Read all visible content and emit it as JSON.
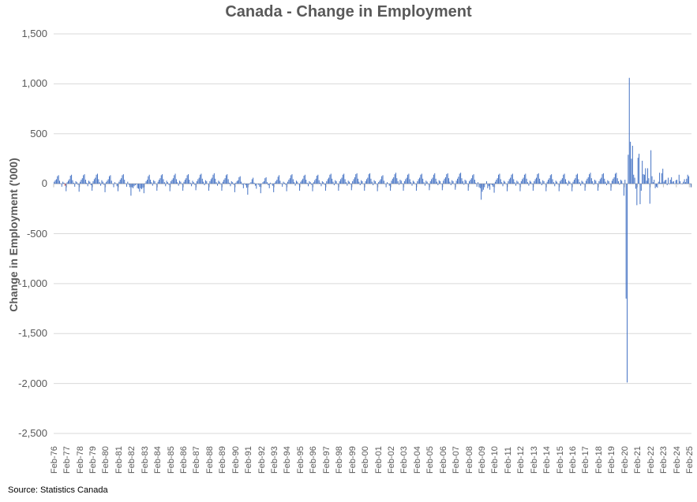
{
  "title": "Canada - Change in Employment",
  "source": "Source: Statistics Canada",
  "colors": {
    "bar": "#4472C4",
    "highlight_bar": "#d0342c",
    "gridline": "#D9D9D9",
    "axis": "#BFBFBF",
    "title_text": "#595959",
    "tick_text": "#595959"
  },
  "chart_data": {
    "type": "bar",
    "title": "Canada - Change in Employment",
    "xlabel": "",
    "ylabel": "Change in Employment ('000)",
    "ylim": [
      -2500,
      1500
    ],
    "ytick_step": 500,
    "yticks": [
      "1,500",
      "1,000",
      "500",
      "0",
      "-500",
      "-1,000",
      "-1,500",
      "-2,000",
      "-2,500"
    ],
    "grid": true,
    "legend": false,
    "x_unit": "monthly",
    "x_start": "Feb-1976",
    "x_end": "Mar-2025",
    "xtick_every_months": 12,
    "xtick_labels": [
      "Feb-76",
      "Feb-77",
      "Feb-78",
      "Feb-79",
      "Feb-80",
      "Feb-81",
      "Feb-82",
      "Feb-83",
      "Feb-84",
      "Feb-85",
      "Feb-86",
      "Feb-87",
      "Feb-88",
      "Feb-89",
      "Feb-90",
      "Feb-91",
      "Feb-92",
      "Feb-93",
      "Feb-94",
      "Feb-95",
      "Feb-96",
      "Feb-97",
      "Feb-98",
      "Feb-99",
      "Feb-00",
      "Feb-01",
      "Feb-02",
      "Feb-03",
      "Feb-04",
      "Feb-05",
      "Feb-06",
      "Feb-07",
      "Feb-08",
      "Feb-09",
      "Feb-10",
      "Feb-11",
      "Feb-12",
      "Feb-13",
      "Feb-14",
      "Feb-15",
      "Feb-16",
      "Feb-17",
      "Feb-18",
      "Feb-19",
      "Feb-20",
      "Feb-21",
      "Feb-22",
      "Feb-23",
      "Feb-24",
      "Feb-25"
    ],
    "highlight": {
      "index": 10,
      "label": "Dec-76",
      "color": "#d0342c"
    },
    "notable_points": [
      {
        "label": "Mar-20",
        "value": -1150
      },
      {
        "label": "Apr-20",
        "value": -1990
      },
      {
        "label": "Jun-20",
        "value": 1060
      },
      {
        "label": "Jan-09",
        "value": -160
      },
      {
        "label": "Jan-21",
        "value": -215
      },
      {
        "label": "Feb-22",
        "value": 335
      }
    ],
    "values": [
      20,
      35,
      45,
      75,
      85,
      30,
      5,
      -30,
      20,
      10,
      -20,
      -75,
      15,
      30,
      45,
      80,
      90,
      35,
      10,
      -30,
      25,
      15,
      -10,
      -80,
      20,
      40,
      55,
      85,
      95,
      40,
      10,
      -25,
      30,
      20,
      -15,
      -70,
      25,
      45,
      60,
      90,
      100,
      45,
      15,
      -20,
      35,
      20,
      -10,
      -85,
      15,
      30,
      45,
      75,
      85,
      30,
      0,
      -35,
      15,
      5,
      -25,
      -75,
      20,
      40,
      55,
      85,
      95,
      40,
      5,
      -30,
      20,
      -10,
      -35,
      -120,
      -35,
      -45,
      -25,
      -15,
      -5,
      -45,
      -50,
      -80,
      -45,
      -55,
      -40,
      -95,
      5,
      25,
      40,
      75,
      90,
      40,
      15,
      -20,
      35,
      25,
      0,
      -70,
      20,
      40,
      55,
      85,
      95,
      45,
      15,
      -25,
      30,
      15,
      -10,
      -75,
      25,
      40,
      55,
      85,
      100,
      45,
      15,
      -20,
      30,
      20,
      -5,
      -70,
      20,
      40,
      55,
      85,
      95,
      40,
      10,
      -25,
      30,
      15,
      -10,
      -65,
      25,
      45,
      60,
      90,
      100,
      50,
      20,
      -15,
      35,
      25,
      0,
      -70,
      25,
      45,
      60,
      90,
      105,
      50,
      15,
      -20,
      30,
      20,
      -5,
      -70,
      20,
      40,
      55,
      85,
      95,
      45,
      10,
      -25,
      25,
      15,
      -10,
      -85,
      10,
      25,
      35,
      65,
      75,
      20,
      -10,
      -45,
      5,
      -15,
      -40,
      -110,
      -10,
      5,
      15,
      45,
      60,
      10,
      -20,
      -50,
      0,
      -10,
      -30,
      -95,
      0,
      15,
      25,
      55,
      65,
      15,
      -15,
      -45,
      10,
      0,
      -20,
      -85,
      10,
      25,
      40,
      70,
      85,
      30,
      5,
      -30,
      20,
      10,
      -10,
      -75,
      20,
      40,
      55,
      85,
      95,
      45,
      15,
      -20,
      30,
      20,
      -5,
      -70,
      20,
      35,
      50,
      80,
      90,
      40,
      10,
      -25,
      25,
      15,
      -10,
      -75,
      15,
      35,
      50,
      80,
      90,
      35,
      10,
      -25,
      25,
      15,
      -10,
      -70,
      25,
      45,
      60,
      90,
      100,
      50,
      20,
      -15,
      35,
      25,
      0,
      -70,
      25,
      45,
      60,
      90,
      100,
      45,
      15,
      -20,
      30,
      20,
      -5,
      -65,
      25,
      45,
      65,
      95,
      105,
      50,
      20,
      -15,
      35,
      25,
      0,
      -70,
      25,
      45,
      60,
      95,
      105,
      50,
      20,
      -15,
      35,
      25,
      0,
      -75,
      15,
      30,
      45,
      75,
      85,
      30,
      0,
      -35,
      15,
      5,
      -20,
      -70,
      30,
      50,
      65,
      95,
      110,
      55,
      25,
      -10,
      40,
      30,
      5,
      -70,
      25,
      45,
      60,
      90,
      100,
      45,
      15,
      -20,
      30,
      20,
      -5,
      -70,
      25,
      45,
      60,
      90,
      100,
      50,
      15,
      -20,
      30,
      20,
      -5,
      -65,
      25,
      45,
      60,
      90,
      105,
      50,
      20,
      -15,
      35,
      25,
      0,
      -65,
      30,
      50,
      65,
      95,
      105,
      55,
      20,
      -15,
      35,
      25,
      0,
      -60,
      30,
      50,
      70,
      100,
      110,
      55,
      25,
      -10,
      40,
      30,
      5,
      -70,
      25,
      40,
      55,
      85,
      95,
      40,
      10,
      -30,
      15,
      -35,
      -45,
      -160,
      -80,
      -60,
      -35,
      0,
      25,
      -45,
      -25,
      -60,
      -5,
      -15,
      -30,
      -90,
      20,
      40,
      55,
      90,
      100,
      45,
      15,
      -25,
      30,
      20,
      -5,
      -75,
      25,
      45,
      60,
      90,
      100,
      45,
      15,
      -20,
      30,
      20,
      -5,
      -75,
      25,
      45,
      60,
      90,
      100,
      50,
      15,
      -20,
      30,
      20,
      -5,
      -70,
      25,
      45,
      60,
      95,
      105,
      50,
      20,
      -15,
      35,
      25,
      0,
      -75,
      20,
      40,
      55,
      85,
      95,
      45,
      15,
      -25,
      30,
      20,
      -5,
      -75,
      25,
      40,
      55,
      90,
      100,
      45,
      15,
      -20,
      30,
      20,
      -5,
      -75,
      20,
      40,
      55,
      90,
      100,
      45,
      15,
      -20,
      30,
      20,
      -5,
      -70,
      30,
      50,
      65,
      95,
      110,
      55,
      25,
      -10,
      40,
      30,
      5,
      -70,
      25,
      45,
      60,
      95,
      105,
      50,
      20,
      -15,
      35,
      25,
      0,
      -70,
      30,
      50,
      65,
      100,
      110,
      55,
      25,
      -10,
      40,
      30,
      5,
      -120,
      40,
      -1150,
      -1990,
      290,
      1060,
      420,
      250,
      380,
      90,
      60,
      -50,
      -215,
      260,
      300,
      -205,
      -70,
      230,
      95,
      90,
      155,
      30,
      155,
      55,
      -200,
      335,
      75,
      15,
      40,
      -45,
      -30,
      -40,
      20,
      110,
      10,
      105,
      150,
      20,
      35,
      40,
      -15,
      60,
      -5,
      40,
      65,
      20,
      25,
      0,
      35,
      40,
      -5,
      90,
      25,
      0,
      -5,
      20,
      45,
      15,
      50,
      90,
      75,
      0,
      -35
    ]
  }
}
